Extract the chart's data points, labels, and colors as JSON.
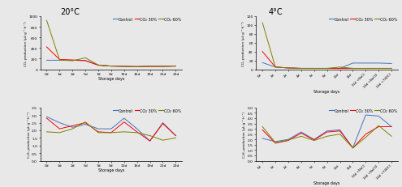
{
  "title_20": "20°C",
  "title_4": "4°C",
  "xlabel": "Storage days",
  "ylabel_co2": "CO₂ production (μL·g⁻¹·h⁻¹)",
  "ylabel_eth": "C₂H₄ production (μL·g⁻¹·h⁻¹)",
  "legend": [
    "Control",
    "CO₂ 30%",
    "CO₂ 60%"
  ],
  "colors": [
    "#4472c4",
    "#ff0000",
    "#808000"
  ],
  "bg_color": "#e8e8e8",
  "x_20": [
    "0d",
    "1d",
    "2d",
    "5d",
    "7d",
    "9d",
    "13d",
    "16d",
    "19d",
    "21d",
    "23d"
  ],
  "co2_20_control": [
    170,
    170,
    170,
    160,
    80,
    60,
    55,
    50,
    55,
    55,
    60
  ],
  "co2_20_30": [
    420,
    185,
    175,
    165,
    75,
    60,
    55,
    50,
    55,
    55,
    60
  ],
  "co2_20_60": [
    920,
    175,
    160,
    215,
    80,
    60,
    55,
    50,
    55,
    55,
    60
  ],
  "co2_20_ylim": [
    0,
    1000
  ],
  "co2_20_yticks": [
    0,
    200,
    400,
    600,
    800,
    1000
  ],
  "eth_20_control": [
    2.9,
    2.5,
    2.2,
    2.4,
    2.1,
    2.1,
    2.8,
    2.1,
    1.3,
    2.5,
    1.65
  ],
  "eth_20_30": [
    2.8,
    2.1,
    2.3,
    2.5,
    1.9,
    1.85,
    2.55,
    1.9,
    1.3,
    2.45,
    1.65
  ],
  "eth_20_60": [
    1.9,
    1.85,
    2.1,
    2.55,
    1.85,
    1.85,
    1.9,
    1.85,
    1.65,
    1.35,
    1.5
  ],
  "eth_20_ylim": [
    0,
    3.5
  ],
  "eth_20_yticks": [
    0.0,
    0.5,
    1.0,
    1.5,
    2.0,
    2.5,
    3.0,
    3.5
  ],
  "x_4": [
    "0d",
    "1d",
    "2d",
    "4d",
    "7d",
    "9d",
    "13d",
    "16d",
    "16d\n+NaCl",
    "16d\n+NaCl2",
    "16d\n+74DCl"
  ],
  "x_4_labels": [
    "0d",
    "1d",
    "2d",
    "4d",
    "7d",
    "9d",
    "13d",
    "16d",
    "16d +NaCl",
    "16d +NaCl2",
    "16d +74DCl"
  ],
  "co2_4_control": [
    15,
    5,
    3,
    2,
    2,
    2,
    2,
    14,
    14,
    14,
    13
  ],
  "co2_4_30": [
    40,
    5,
    3,
    2,
    2,
    2,
    2,
    2,
    2,
    2,
    2
  ],
  "co2_4_60": [
    105,
    5,
    3,
    2,
    2,
    2,
    5,
    2,
    2,
    2,
    2
  ],
  "co2_4_ylim": [
    0,
    120
  ],
  "co2_4_yticks": [
    0,
    20,
    40,
    60,
    80,
    100,
    120
  ],
  "eth_4_control": [
    2.1,
    1.8,
    2.0,
    2.7,
    2.0,
    2.8,
    2.9,
    1.2,
    4.3,
    4.2,
    3.2
  ],
  "eth_4_30": [
    2.9,
    1.65,
    1.9,
    2.6,
    1.95,
    2.7,
    2.8,
    1.2,
    2.5,
    3.2,
    3.2
  ],
  "eth_4_60": [
    3.2,
    1.7,
    1.95,
    2.3,
    1.9,
    2.3,
    2.5,
    1.2,
    2.2,
    3.3,
    2.3
  ],
  "eth_4_ylim": [
    0,
    5.0
  ],
  "eth_4_yticks": [
    0.0,
    0.5,
    1.0,
    1.5,
    2.0,
    2.5,
    3.0,
    3.5,
    4.0,
    4.5,
    5.0
  ]
}
